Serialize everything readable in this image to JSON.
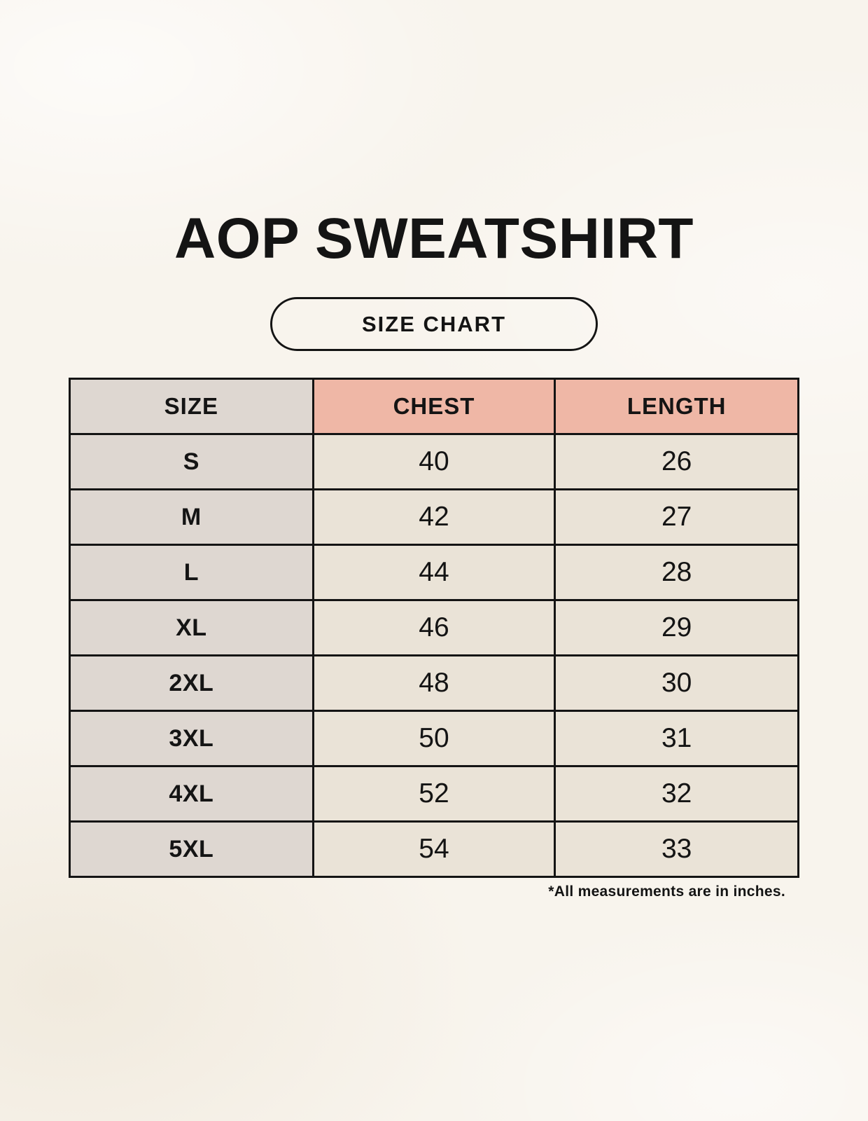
{
  "chart_data": {
    "type": "table",
    "title": "AOP SWEATSHIRT",
    "badge": "SIZE CHART",
    "columns": [
      "SIZE",
      "CHEST",
      "LENGTH"
    ],
    "rows": [
      [
        "S",
        40,
        26
      ],
      [
        "M",
        42,
        27
      ],
      [
        "L",
        44,
        28
      ],
      [
        "XL",
        46,
        29
      ],
      [
        "2XL",
        48,
        30
      ],
      [
        "3XL",
        50,
        31
      ],
      [
        "4XL",
        52,
        32
      ],
      [
        "5XL",
        54,
        33
      ]
    ],
    "note": "*All measurements are in inches.",
    "units": "inches"
  },
  "colors": {
    "background": "#f8f4ed",
    "size_column_bg": "#ded7d1",
    "header_accent_bg": "#efb7a6",
    "value_cell_bg": "#eae3d7",
    "border": "#141414",
    "text": "#141414"
  }
}
